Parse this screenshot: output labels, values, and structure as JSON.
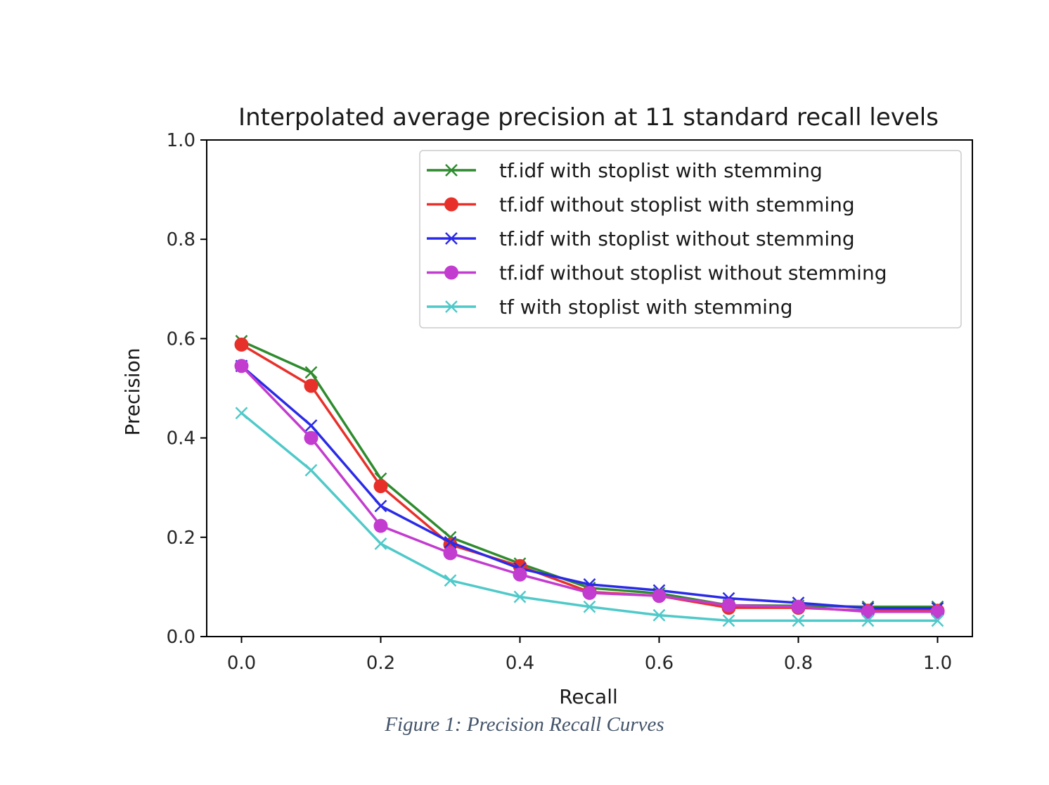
{
  "chart_data": {
    "type": "line",
    "title": "Interpolated average precision at 11 standard recall levels",
    "xlabel": "Recall",
    "ylabel": "Precision",
    "xlim": [
      -0.05,
      1.05
    ],
    "ylim": [
      0.0,
      1.0
    ],
    "x_ticks": [
      "0.0",
      "0.2",
      "0.4",
      "0.6",
      "0.8",
      "1.0"
    ],
    "y_ticks": [
      "0.0",
      "0.2",
      "0.4",
      "0.6",
      "0.8",
      "1.0"
    ],
    "grid": false,
    "legend_position": "upper right",
    "x": [
      0.0,
      0.1,
      0.2,
      0.3,
      0.4,
      0.5,
      0.6,
      0.7,
      0.8,
      0.9,
      1.0
    ],
    "series": [
      {
        "name": "tf.idf with stoplist with stemming",
        "color": "#2e8b2e",
        "marker": "x",
        "values": [
          0.595,
          0.532,
          0.318,
          0.2,
          0.147,
          0.098,
          0.087,
          0.063,
          0.062,
          0.06,
          0.06
        ]
      },
      {
        "name": "tf.idf without stoplist with stemming",
        "color": "#e8302a",
        "marker": "o",
        "values": [
          0.588,
          0.505,
          0.303,
          0.185,
          0.142,
          0.09,
          0.082,
          0.058,
          0.058,
          0.052,
          0.052
        ]
      },
      {
        "name": "tf.idf with stoplist without stemming",
        "color": "#2a2ae8",
        "marker": "x",
        "values": [
          0.545,
          0.425,
          0.263,
          0.19,
          0.137,
          0.105,
          0.093,
          0.077,
          0.068,
          0.057,
          0.057
        ]
      },
      {
        "name": "tf.idf without stoplist without stemming",
        "color": "#c23ccf",
        "marker": "o",
        "values": [
          0.545,
          0.4,
          0.223,
          0.168,
          0.125,
          0.088,
          0.082,
          0.063,
          0.06,
          0.05,
          0.05
        ]
      },
      {
        "name": "tf with stoplist with stemming",
        "color": "#4fc9c9",
        "marker": "x",
        "values": [
          0.45,
          0.335,
          0.187,
          0.113,
          0.08,
          0.06,
          0.043,
          0.032,
          0.032,
          0.032,
          0.032
        ]
      }
    ]
  },
  "caption": "Figure 1: Precision Recall Curves"
}
